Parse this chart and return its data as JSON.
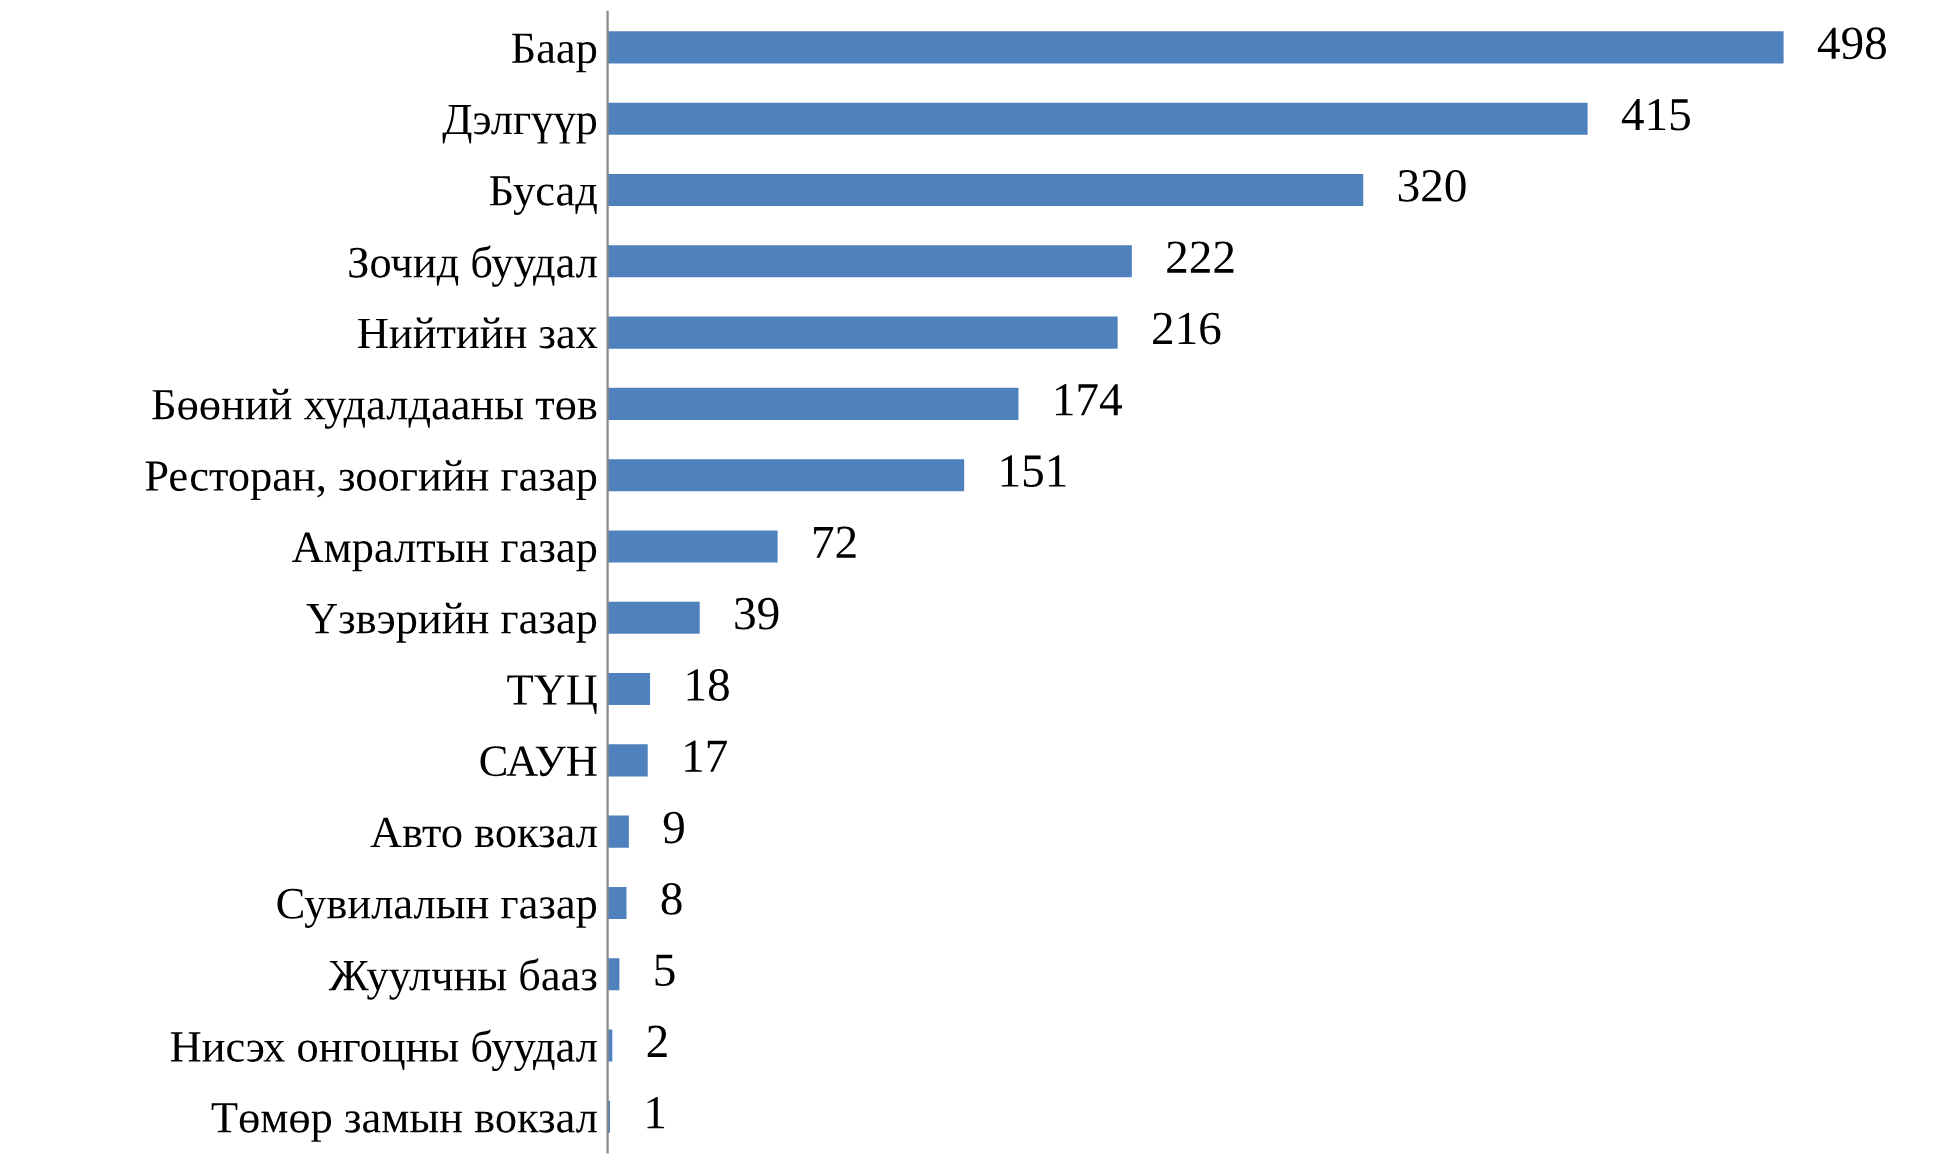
{
  "chart_data": {
    "type": "bar",
    "orientation": "horizontal",
    "categories": [
      "Баар",
      "Дэлгүүр",
      "Бусад",
      "Зочид буудал",
      "Нийтийн зах",
      "Бөөний худалдааны төв",
      "Ресторан, зоогийн газар",
      "Амралтын газар",
      "Үзвэрийн газар",
      "ТҮЦ",
      "САУН",
      "Авто вокзал",
      "Сувилалын газар",
      "Жуулчны бааз",
      "Нисэх онгоцны буудал",
      "Төмөр замын вокзал"
    ],
    "values": [
      498,
      415,
      320,
      222,
      216,
      174,
      151,
      72,
      39,
      18,
      17,
      9,
      8,
      5,
      2,
      1
    ],
    "color": "#4f81bd",
    "data_labels": true,
    "tick_labels": "y",
    "grid": false,
    "legend": false
  }
}
